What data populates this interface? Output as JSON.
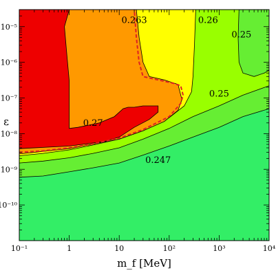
{
  "chart_data": {
    "type": "heatmap",
    "title": "",
    "xlabel": "m_f [MeV]",
    "ylabel": "ε",
    "x_scale": "log",
    "y_scale": "log",
    "xlim": [
      0.1,
      10000
    ],
    "ylim": [
      1e-11,
      3e-05
    ],
    "x_ticks": [
      {
        "value": 0.1,
        "label": "10⁻¹"
      },
      {
        "value": 1,
        "label": "1"
      },
      {
        "value": 10,
        "label": "10"
      },
      {
        "value": 100,
        "label": "10²"
      },
      {
        "value": 1000,
        "label": "10³"
      },
      {
        "value": 10000,
        "label": "10⁴"
      }
    ],
    "y_ticks": [
      {
        "value": 1e-10,
        "label": "10⁻¹⁰"
      },
      {
        "value": 1e-09,
        "label": "10⁻⁹"
      },
      {
        "value": 1e-08,
        "label": "10⁻⁸"
      },
      {
        "value": 1e-07,
        "label": "10⁻⁷"
      },
      {
        "value": 1e-06,
        "label": "10⁻⁶"
      },
      {
        "value": 1e-05,
        "label": "10⁻⁵"
      }
    ],
    "colors": {
      "region_0247": "#33ee66",
      "region_025": "#66ee33",
      "region_026": "#99ff00",
      "region_0263": "#ffff00",
      "region_027_orange": "#ff9900",
      "region_027_red": "#ee0000",
      "dashed_contour": "#dd2222",
      "contour_line": "#000000"
    },
    "regions": [
      {
        "label": "0.247",
        "color_key": "region_0247",
        "points": [
          [
            0.1,
            1e-11
          ],
          [
            10000,
            1e-11
          ],
          [
            10000,
            3e-05
          ],
          [
            0.1,
            3e-05
          ]
        ]
      },
      {
        "label": "0.25",
        "color_key": "region_025",
        "points": [
          [
            0.1,
            6e-10
          ],
          [
            0.3,
            6.5e-10
          ],
          [
            1,
            8.5e-10
          ],
          [
            3,
            1.1e-09
          ],
          [
            10,
            1.5e-09
          ],
          [
            30,
            2.5e-09
          ],
          [
            100,
            4.5e-09
          ],
          [
            300,
            8e-09
          ],
          [
            1000,
            1.5e-08
          ],
          [
            3000,
            3e-08
          ],
          [
            10000,
            5e-08
          ],
          [
            10000,
            3e-05
          ],
          [
            0.1,
            3e-05
          ]
        ]
      },
      {
        "label": "0.26",
        "color_key": "region_026",
        "points": [
          [
            0.1,
            1.5e-09
          ],
          [
            0.3,
            1.7e-09
          ],
          [
            1,
            2.1e-09
          ],
          [
            3,
            2.8e-09
          ],
          [
            10,
            4e-09
          ],
          [
            30,
            7e-09
          ],
          [
            100,
            1.4e-08
          ],
          [
            300,
            3e-08
          ],
          [
            1000,
            6e-08
          ],
          [
            3000,
            1.2e-07
          ],
          [
            10000,
            2.2e-07
          ],
          [
            10000,
            3e-05
          ],
          [
            0.1,
            3e-05
          ]
        ]
      },
      {
        "label": "0.263",
        "color_key": "region_0263",
        "points": [
          [
            0.1,
            2.4e-09
          ],
          [
            0.3,
            2.8e-09
          ],
          [
            1,
            3.5e-09
          ],
          [
            3,
            4.8e-09
          ],
          [
            10,
            7e-09
          ],
          [
            30,
            1.2e-08
          ],
          [
            100,
            2.8e-08
          ],
          [
            200,
            6e-08
          ],
          [
            280,
            1.5e-07
          ],
          [
            300,
            4e-07
          ],
          [
            320,
            3e-06
          ],
          [
            340,
            3e-05
          ],
          [
            0.1,
            3e-05
          ]
        ]
      },
      {
        "label": "0.27",
        "color_key": "region_027_orange",
        "points": [
          [
            0.1,
            2.7e-09
          ],
          [
            1,
            3.8e-09
          ],
          [
            10,
            7e-09
          ],
          [
            30,
            1.2e-08
          ],
          [
            80,
            2.2e-08
          ],
          [
            150,
            4.5e-08
          ],
          [
            180,
            9e-08
          ],
          [
            150,
            2.4e-07
          ],
          [
            80,
            3.2e-07
          ],
          [
            40,
            4e-07
          ],
          [
            30,
            1e-06
          ],
          [
            25,
            5e-06
          ],
          [
            22,
            3e-05
          ],
          [
            0.1,
            3e-05
          ]
        ]
      },
      {
        "label": "0.27",
        "color_key": "region_027_red",
        "points": [
          [
            0.1,
            3.8e-09
          ],
          [
            1,
            4.5e-09
          ],
          [
            5,
            6e-09
          ],
          [
            10,
            8e-09
          ],
          [
            20,
            1.5e-08
          ],
          [
            40,
            2.5e-08
          ],
          [
            60,
            4e-08
          ],
          [
            60,
            6e-08
          ],
          [
            30,
            6e-08
          ],
          [
            20,
            5.5e-08
          ],
          [
            15,
            5.5e-08
          ],
          [
            12,
            5e-08
          ],
          [
            8,
            3e-08
          ],
          [
            4,
            2e-08
          ],
          [
            1.5,
            1.5e-08
          ],
          [
            1,
            1.4e-08
          ],
          [
            1,
            3e-07
          ],
          [
            0.9,
            1.5e-06
          ],
          [
            0.8,
            1e-05
          ],
          [
            1,
            3e-05
          ],
          [
            0.1,
            3e-05
          ]
        ]
      },
      {
        "label": "0.25",
        "color_key": "region_025",
        "points": [
          [
            2500,
            3e-05
          ],
          [
            10000,
            3e-05
          ],
          [
            10000,
            6e-07
          ],
          [
            8000,
            5e-07
          ],
          [
            5000,
            4e-07
          ],
          [
            3000,
            5e-07
          ],
          [
            2500,
            1e-06
          ],
          [
            2400,
            5e-06
          ]
        ]
      }
    ],
    "dashed_contour": [
      [
        0.1,
        3e-09
      ],
      [
        0.3,
        3.3e-09
      ],
      [
        1,
        4e-09
      ],
      [
        3,
        5.2e-09
      ],
      [
        10,
        7.5e-09
      ],
      [
        30,
        1.3e-08
      ],
      [
        100,
        3e-08
      ],
      [
        170,
        7e-08
      ],
      [
        190,
        1.2e-07
      ],
      [
        170,
        2.2e-07
      ],
      [
        120,
        2.6e-07
      ],
      [
        60,
        3.2e-07
      ],
      [
        30,
        4e-07
      ],
      [
        25,
        1e-06
      ],
      [
        22,
        5e-06
      ],
      [
        20,
        3e-05
      ]
    ],
    "contour_labels": [
      {
        "text": "0.263",
        "x": 20,
        "y": 1.5e-05
      },
      {
        "text": "0.26",
        "x": 600,
        "y": 1.5e-05
      },
      {
        "text": "0.25",
        "x": 2800,
        "y": 6e-06
      },
      {
        "text": "0.25",
        "x": 1000,
        "y": 1.3e-07
      },
      {
        "text": "0.27",
        "x": 3,
        "y": 2e-08
      },
      {
        "text": "0.247",
        "x": 60,
        "y": 1.8e-09
      }
    ]
  }
}
